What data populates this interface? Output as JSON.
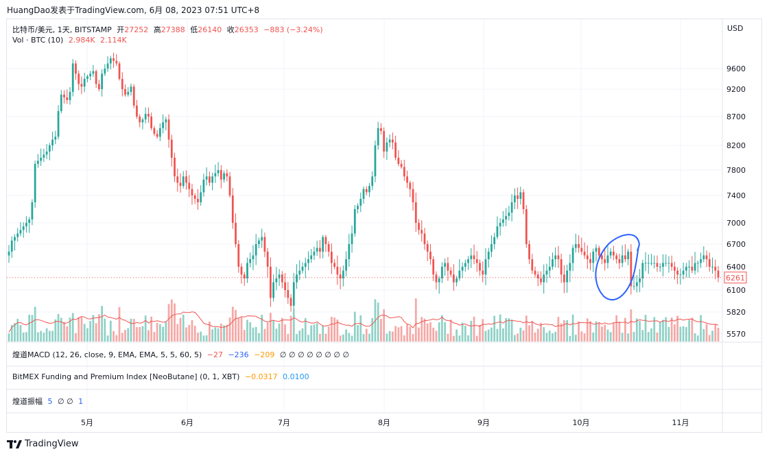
{
  "header": {
    "text": "HuangDao发表于TradingView.com, 6月 08, 2023 07:51 UTC+8"
  },
  "legend": {
    "symbol": "比特币/美元, 1天, BITSTAMP",
    "open_label": "开",
    "open": "27252",
    "high_label": "高",
    "high": "27388",
    "low_label": "低",
    "low": "26140",
    "close_label": "收",
    "close": "26353",
    "change": "−883 (−3.24%)",
    "vol_label": "Vol · BTC (10)",
    "vol_1": "2.984K",
    "vol_2": "2.114K"
  },
  "indicators": {
    "macd_label": "煌道MACD (12, 26, close, 9, EMA, EMA, 5, 5, 60, 5)",
    "macd_v1": "−27",
    "macd_v2": "−236",
    "macd_v3": "−209",
    "macd_zeros": "∅ ∅ ∅ ∅ ∅ ∅ ∅ ∅",
    "bitmex_label": "BitMEX Funding and Premium Index [NeoButane] (0, 1, XBT)",
    "bitmex_v1": "−0.0317",
    "bitmex_v2": "0.0100",
    "amp_label": "煌道振幅",
    "amp_v1": "5",
    "amp_zeros": "∅ ∅",
    "amp_v2": "1"
  },
  "axis": {
    "currency": "USD",
    "last_price": "6261"
  },
  "brand": {
    "name": "TradingView"
  },
  "colors": {
    "up": "#26a69a",
    "down": "#ef5350",
    "vol_up": "#8fd1c6",
    "vol_down": "#f5a8a6",
    "annotation": "#2962ff"
  },
  "chart_data": {
    "type": "candlestick",
    "y_ticks": [
      9600,
      9200,
      8700,
      8200,
      7800,
      7400,
      7000,
      6700,
      6400,
      6100,
      5820,
      5570
    ],
    "x_ticks": [
      "5月",
      "6月",
      "7月",
      "8月",
      "9月",
      "10月",
      "11月"
    ],
    "closes": [
      6600,
      6750,
      6800,
      6850,
      6900,
      6950,
      7000,
      7050,
      7300,
      7900,
      7950,
      8000,
      8050,
      8100,
      8200,
      8300,
      8350,
      8800,
      9100,
      9050,
      9000,
      9150,
      9700,
      9500,
      9300,
      9250,
      9400,
      9450,
      9500,
      9550,
      9300,
      9200,
      9500,
      9600,
      9700,
      9800,
      9750,
      9700,
      9400,
      9200,
      9100,
      9150,
      9250,
      8900,
      8700,
      8600,
      8650,
      8750,
      8700,
      8500,
      8400,
      8350,
      8500,
      8600,
      8650,
      8300,
      8000,
      7700,
      7600,
      7550,
      7700,
      7600,
      7500,
      7400,
      7350,
      7300,
      7450,
      7650,
      7700,
      7600,
      7700,
      7750,
      7800,
      7650,
      7750,
      7700,
      7400,
      7000,
      6700,
      6400,
      6300,
      6250,
      6450,
      6500,
      6550,
      6700,
      6750,
      6800,
      6600,
      6400,
      6000,
      6200,
      6250,
      6300,
      6200,
      6100,
      6000,
      5900,
      6200,
      6300,
      6350,
      6400,
      6450,
      6500,
      6550,
      6600,
      6650,
      6600,
      6800,
      6700,
      6600,
      6450,
      6400,
      6300,
      6250,
      6350,
      6500,
      6700,
      6850,
      7200,
      7250,
      7350,
      7500,
      7450,
      7550,
      7700,
      8200,
      8500,
      8450,
      8100,
      8250,
      8300,
      8250,
      8000,
      7900,
      7850,
      7700,
      7600,
      7500,
      7300,
      7000,
      6900,
      6850,
      6700,
      6600,
      6500,
      6300,
      6200,
      6250,
      6400,
      6450,
      6350,
      6300,
      6200,
      6250,
      6350,
      6400,
      6450,
      6500,
      6550,
      6500,
      6450,
      6350,
      6300,
      6500,
      6600,
      6700,
      6800,
      6950,
      7000,
      7050,
      7100,
      7150,
      7300,
      7400,
      7350,
      7450,
      7200,
      6700,
      6500,
      6350,
      6300,
      6250,
      6200,
      6300,
      6350,
      6400,
      6500,
      6550,
      6500,
      6300,
      6200,
      6350,
      6450,
      6650,
      6700,
      6650,
      6600,
      6550,
      6500,
      6450,
      6600,
      6650,
      6550,
      6500,
      6450,
      6550,
      6600,
      6550,
      6500,
      6450,
      6550,
      6500,
      6600,
      6150,
      6150,
      6200,
      6250,
      6450,
      6450,
      6450,
      6450,
      6450,
      6400,
      6400,
      6450,
      6450,
      6450,
      6400,
      6350,
      6300,
      6300,
      6350,
      6400,
      6400,
      6350,
      6450,
      6450,
      6500,
      6550,
      6500,
      6400,
      6400,
      6350,
      6261
    ],
    "annotation": "blue hand-drawn ellipse around mid-October dip"
  }
}
